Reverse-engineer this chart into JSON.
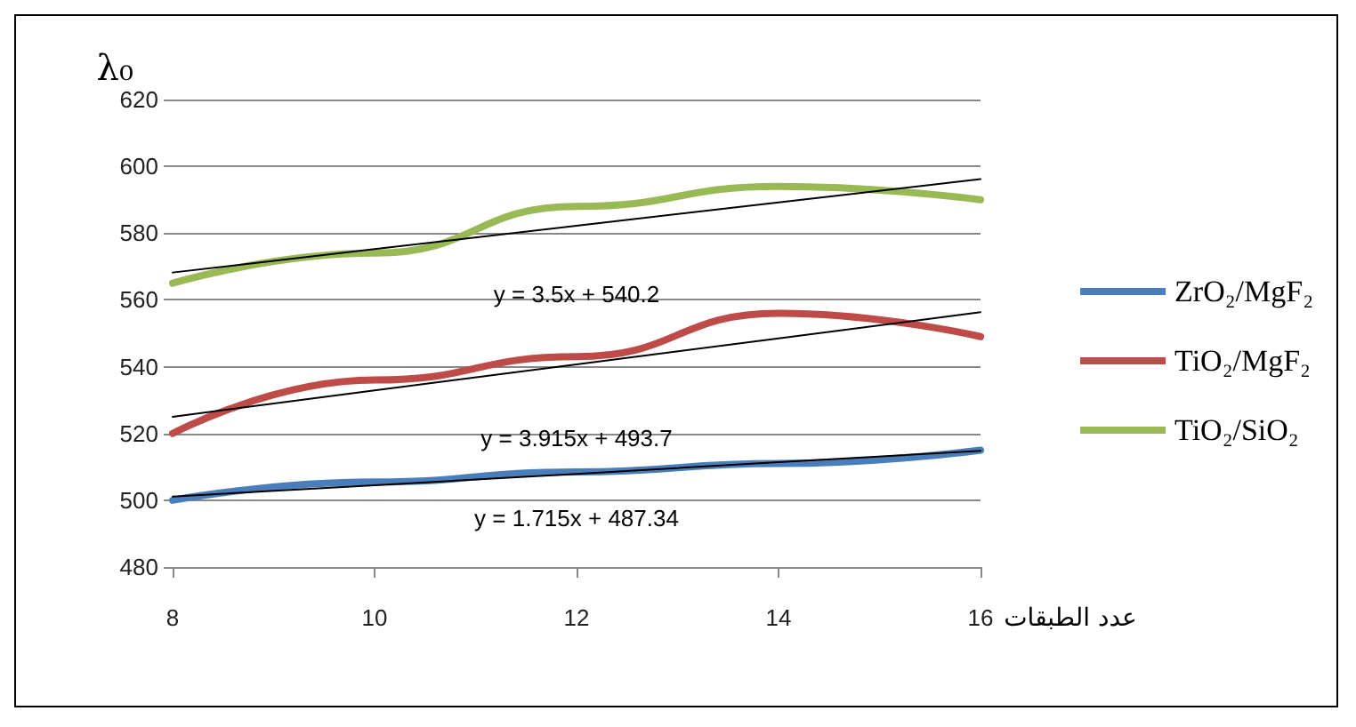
{
  "chart_data": {
    "type": "line",
    "ylabel": "λ₀",
    "xlabel": "عدد الطبقات",
    "x": [
      8,
      10,
      12,
      14,
      16
    ],
    "series": [
      {
        "name": "ZrO₂/MgF₂",
        "color": "#4a7ebb",
        "values": [
          500,
          505.5,
          508.5,
          511,
          515
        ]
      },
      {
        "name": "TiO₂/MgF₂",
        "color": "#be4b48",
        "values": [
          520,
          536,
          543,
          556,
          549
        ]
      },
      {
        "name": "TiO₂/SiO₂",
        "color": "#98b954",
        "values": [
          565,
          574,
          588,
          594,
          590
        ]
      },
      {
        "type": "line",
        "color": "#000000",
        "values": [
          501.1,
          504.5,
          507.9,
          511.4,
          514.8
        ]
      },
      {
        "type": "line",
        "color": "#000000",
        "values": [
          525.0,
          532.9,
          540.7,
          548.5,
          556.3
        ]
      },
      {
        "type": "line",
        "color": "#000000",
        "values": [
          568.2,
          575.2,
          582.2,
          589.2,
          596.2
        ]
      }
    ],
    "annotations": [
      "y = 1.715x + 487.34",
      "y = 3.915x + 493.7",
      "y = 3.5x + 540.2"
    ],
    "xlim": [
      8,
      16
    ],
    "xticks": [
      8,
      10,
      12,
      14,
      16
    ],
    "ylim": [
      480,
      620
    ],
    "yticks": [
      480,
      500,
      520,
      540,
      560,
      580,
      600,
      620
    ],
    "grid": "y",
    "legend": "right",
    "marker": "none",
    "line_style": "solid"
  }
}
